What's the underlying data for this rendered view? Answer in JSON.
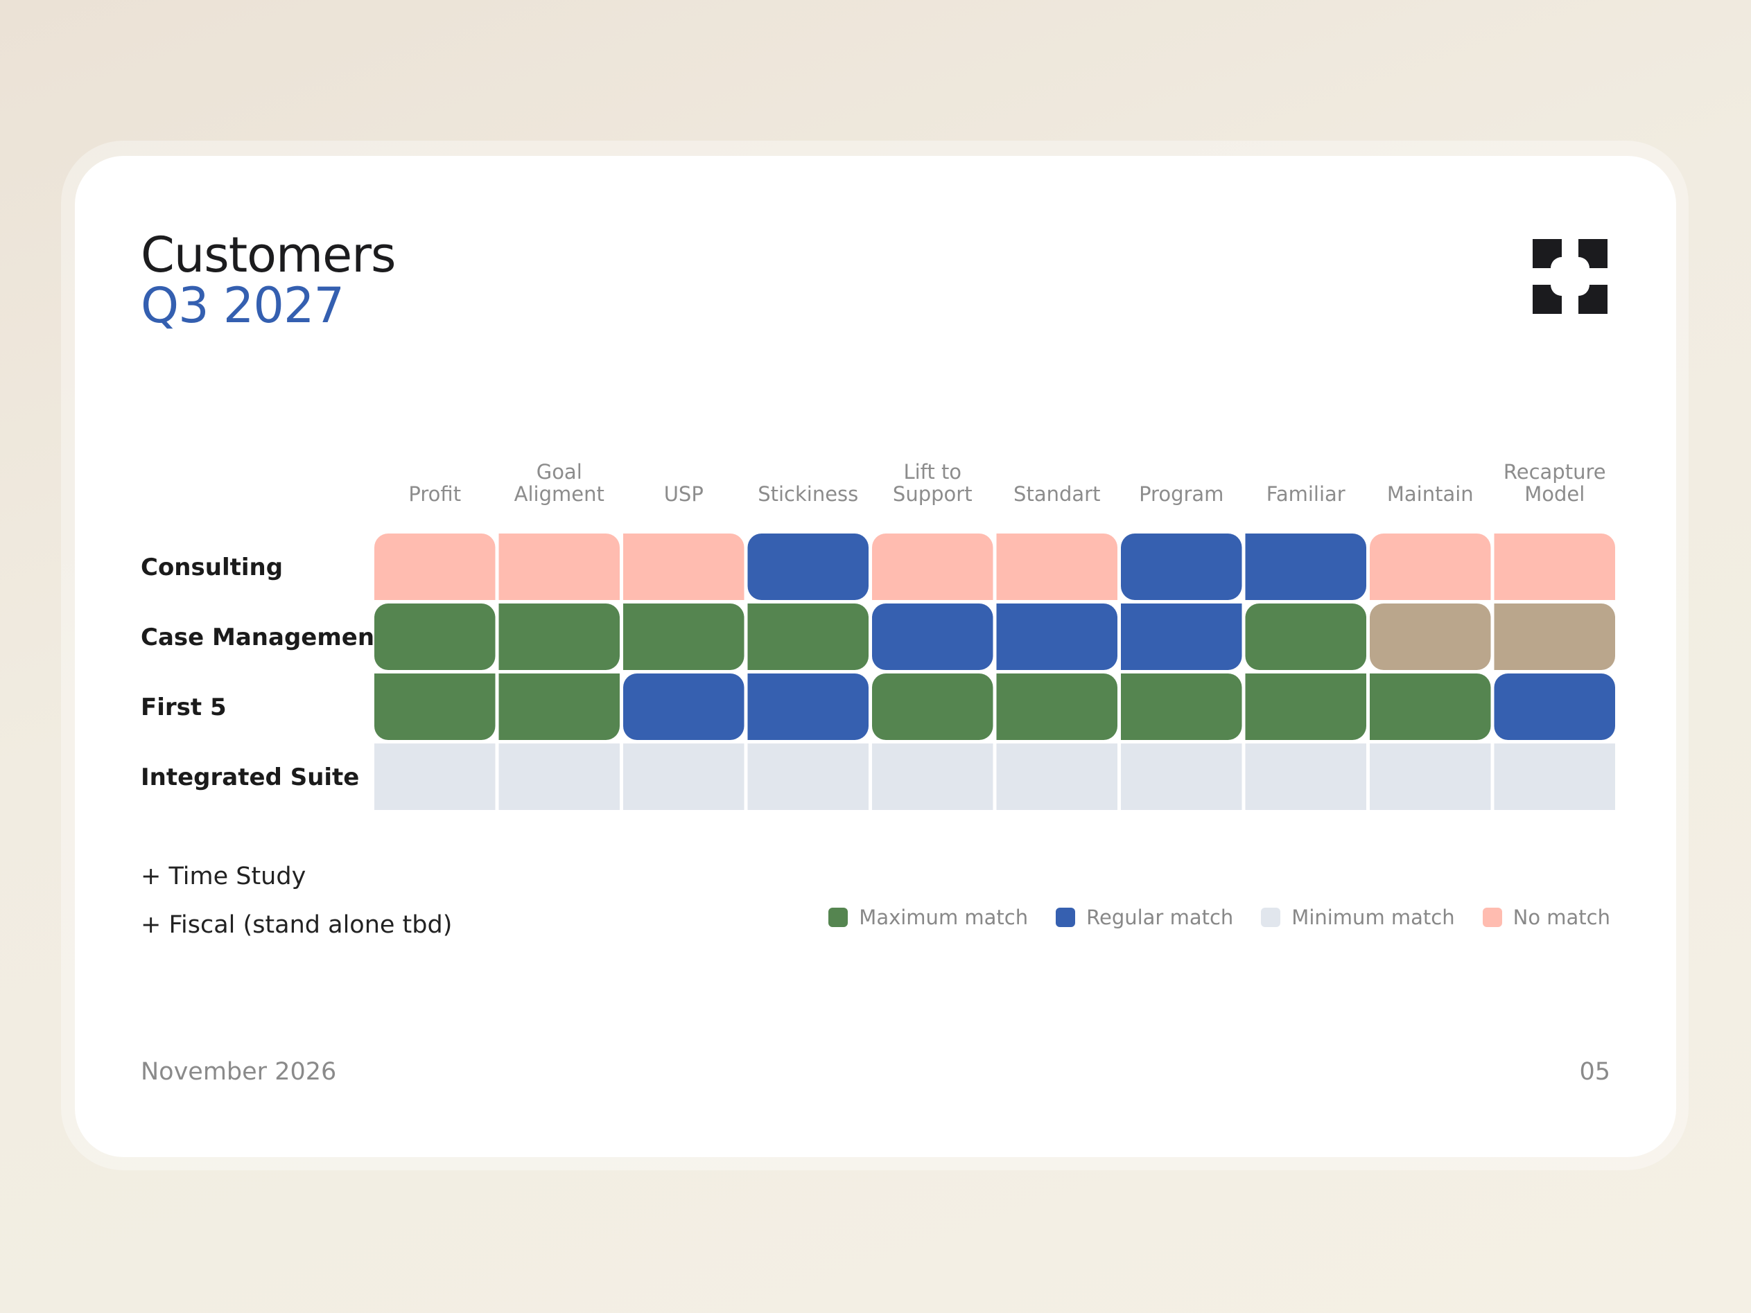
{
  "slide": {
    "title": "Customers",
    "subtitle": "Q3 2027",
    "notes": [
      "+ Time Study",
      "+ Fiscal (stand alone tbd)"
    ],
    "date": "November 2026",
    "page_number": "05",
    "logo_icon": "cross-pinwheel-logo"
  },
  "colors": {
    "max": "#558550",
    "regular": "#3660b0",
    "min": "#e1e6ed",
    "none": "#ffbcb0",
    "other": "#baa68c"
  },
  "chart_data": {
    "type": "heatmap",
    "columns": [
      [
        "Profit"
      ],
      [
        "Goal",
        "Aligment"
      ],
      [
        "USP"
      ],
      [
        "Stickiness"
      ],
      [
        "Lift to",
        "Support"
      ],
      [
        "Standart"
      ],
      [
        "Program"
      ],
      [
        "Familiar"
      ],
      [
        "Maintain"
      ],
      [
        "Recapture",
        "Model"
      ]
    ],
    "rows": [
      "Consulting",
      "Case Management",
      "First 5",
      "Integrated Suite"
    ],
    "cells": [
      [
        "none",
        "none",
        "none",
        "regular",
        "none",
        "none",
        "regular",
        "regular",
        "none",
        "none"
      ],
      [
        "max",
        "max",
        "max",
        "max",
        "regular",
        "regular",
        "regular",
        "max",
        "other",
        "other"
      ],
      [
        "max",
        "max",
        "regular",
        "regular",
        "max",
        "max",
        "max",
        "max",
        "max",
        "regular"
      ],
      [
        "min",
        "min",
        "min",
        "min",
        "min",
        "min",
        "min",
        "min",
        "min",
        "min"
      ]
    ],
    "legend": [
      {
        "key": "max",
        "label": "Maximum match"
      },
      {
        "key": "regular",
        "label": "Regular match"
      },
      {
        "key": "min",
        "label": "Minimum match"
      },
      {
        "key": "none",
        "label": "No match"
      }
    ],
    "legend_position": "bottom-right"
  }
}
